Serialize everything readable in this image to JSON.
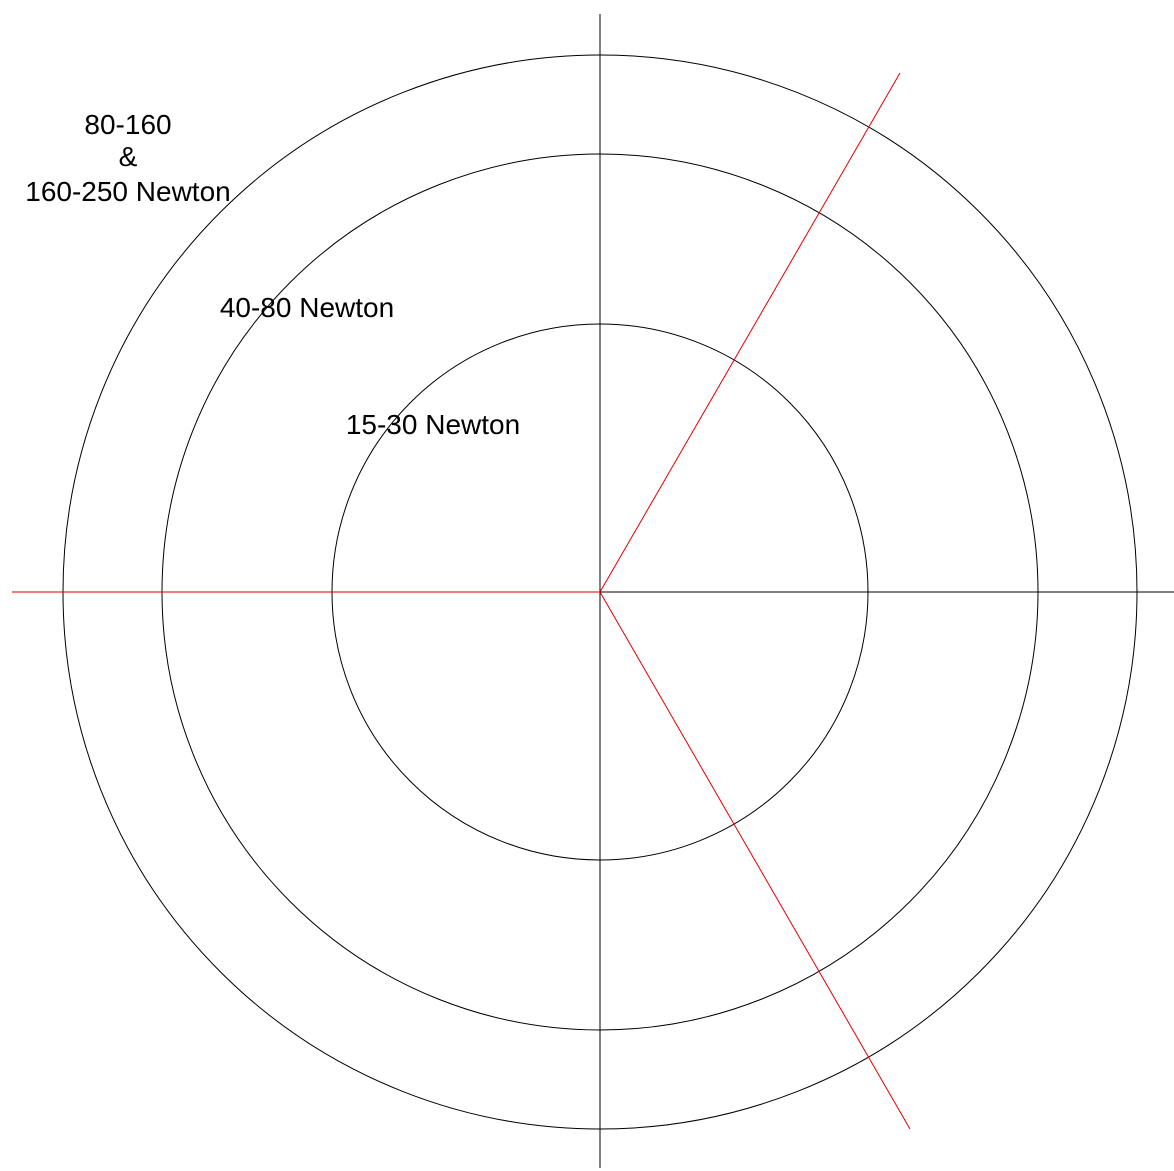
{
  "labels": {
    "outer_line1": "80-160",
    "outer_line2": "&",
    "outer_line3": "160-250 Newton",
    "middle": "40-80 Newton",
    "inner": "15-30 Newton"
  },
  "colors": {
    "background": "#ffffff",
    "axis": "#000000",
    "ring": "#000000",
    "divider": "#e00000",
    "text": "#000000"
  }
}
